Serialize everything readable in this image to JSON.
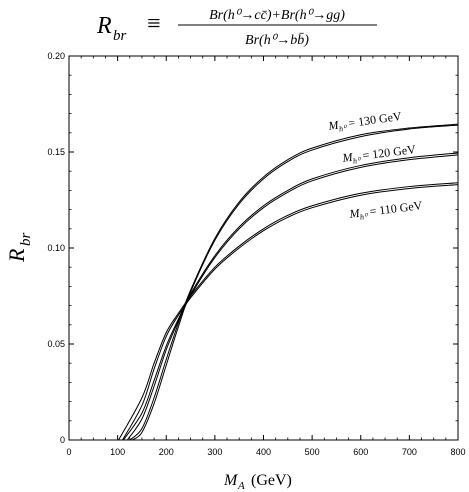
{
  "chart_data": {
    "type": "line",
    "title": {
      "lhs": "R",
      "lhs_sub": "br",
      "equiv": "≡",
      "numerator": "Br(h⁰→cc̄)+Br(h⁰→gg)",
      "denominator": "Br(h⁰→bb̄)"
    },
    "xlabel": {
      "main": "M",
      "sub": "A",
      "unit": "(GeV)"
    },
    "ylabel": {
      "main": "R",
      "sub": "br"
    },
    "xlim": [
      0,
      800
    ],
    "ylim": [
      0,
      0.2
    ],
    "x_ticks": [
      0,
      100,
      200,
      300,
      400,
      500,
      600,
      700,
      800
    ],
    "y_ticks": [
      "0",
      "0.05",
      "0.10",
      "0.15",
      "0.20"
    ],
    "y_tick_values": [
      0,
      0.05,
      0.1,
      0.15,
      0.2
    ],
    "grid": false,
    "legend": "none",
    "series": [
      {
        "label": "M_h⁰ = 130 GeV",
        "x": [
          125,
          150,
          175,
          200,
          225,
          250,
          300,
          350,
          400,
          450,
          500,
          600,
          700,
          800
        ],
        "y": [
          0.0,
          0.006,
          0.022,
          0.042,
          0.061,
          0.078,
          0.105,
          0.124,
          0.137,
          0.146,
          0.152,
          0.159,
          0.1625,
          0.1645
        ]
      },
      {
        "label": "M_h⁰ = 130 GeV",
        "x": [
          130,
          150,
          175,
          200,
          225,
          250,
          300,
          350,
          400,
          450,
          500,
          600,
          700,
          800
        ],
        "y": [
          0.0,
          0.004,
          0.019,
          0.039,
          0.059,
          0.077,
          0.104,
          0.123,
          0.136,
          0.145,
          0.151,
          0.158,
          0.162,
          0.164
        ]
      },
      {
        "label": "M_h⁰ = 120 GeV",
        "x": [
          112,
          150,
          175,
          200,
          225,
          250,
          300,
          350,
          400,
          450,
          500,
          600,
          700,
          800
        ],
        "y": [
          0.0,
          0.014,
          0.031,
          0.049,
          0.063,
          0.076,
          0.096,
          0.111,
          0.122,
          0.13,
          0.136,
          0.143,
          0.147,
          0.1495
        ]
      },
      {
        "label": "M_h⁰ = 120 GeV",
        "x": [
          120,
          150,
          175,
          200,
          225,
          250,
          300,
          350,
          400,
          450,
          500,
          600,
          700,
          800
        ],
        "y": [
          0.0,
          0.011,
          0.028,
          0.047,
          0.062,
          0.075,
          0.095,
          0.11,
          0.121,
          0.129,
          0.135,
          0.142,
          0.146,
          0.1485
        ]
      },
      {
        "label": "M_h⁰ = 110 GeV",
        "x": [
          102,
          150,
          175,
          200,
          225,
          250,
          300,
          350,
          400,
          450,
          500,
          600,
          700,
          800
        ],
        "y": [
          0.0,
          0.022,
          0.04,
          0.056,
          0.066,
          0.075,
          0.09,
          0.101,
          0.11,
          0.117,
          0.122,
          0.1285,
          0.132,
          0.134
        ]
      },
      {
        "label": "M_h⁰ = 110 GeV",
        "x": [
          110,
          150,
          175,
          200,
          225,
          250,
          300,
          350,
          400,
          450,
          500,
          600,
          700,
          800
        ],
        "y": [
          0.0,
          0.018,
          0.037,
          0.054,
          0.065,
          0.074,
          0.089,
          0.1,
          0.109,
          0.116,
          0.121,
          0.1275,
          0.131,
          0.133
        ]
      }
    ],
    "curve_labels": [
      {
        "M": "M",
        "sub": "h⁰",
        "rest": " = 130 GeV"
      },
      {
        "M": "M",
        "sub": "h⁰",
        "rest": " = 120 GeV"
      },
      {
        "M": "M",
        "sub": "h⁰",
        "rest": " = 110 GeV"
      }
    ]
  }
}
